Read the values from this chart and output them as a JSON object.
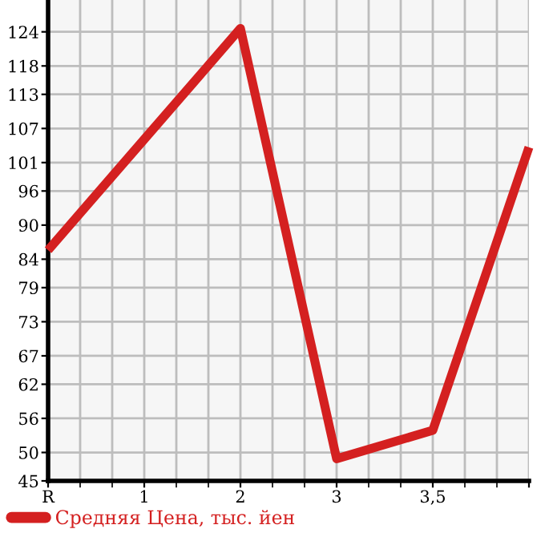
{
  "chart_data": {
    "type": "line",
    "categories": [
      "R",
      "1",
      "2",
      "3",
      "3,5",
      null
    ],
    "series": [
      {
        "name": "Средняя Цена, тыс. йен",
        "color": "#d42020",
        "values": [
          85.6,
          105.1,
          124.6,
          48.9,
          53.9,
          103.7
        ]
      }
    ],
    "ylim": [
      45,
      129.6
    ],
    "yticks": [
      45,
      50,
      56,
      62,
      67,
      73,
      79,
      84,
      90,
      96,
      101,
      107,
      113,
      118,
      124
    ],
    "grid": true,
    "legend": "bottom left",
    "marker": "none",
    "line_style": "solid"
  }
}
